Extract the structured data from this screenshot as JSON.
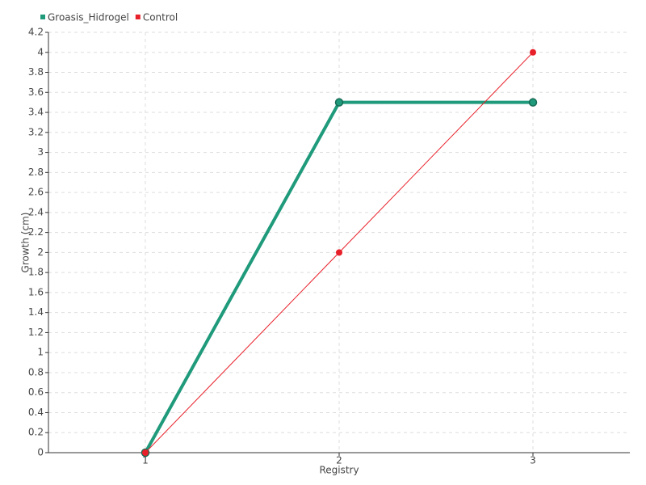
{
  "chart_data": {
    "type": "line",
    "x_label": "Registry",
    "y_label": "Growth (cm)",
    "x": [
      1,
      2,
      3
    ],
    "series": [
      {
        "name": "Groasis_Hidrogel",
        "color": "#1f9a7b",
        "values": [
          0,
          3.5,
          3.5
        ]
      },
      {
        "name": "Control",
        "color": "#e8202a",
        "values": [
          0,
          2,
          4
        ]
      }
    ],
    "xlim": [
      0.5,
      3.5
    ],
    "xticks": [
      1,
      2,
      3
    ],
    "ylim": [
      0,
      4.2
    ],
    "yticks": [
      0,
      0.2,
      0.4,
      0.6,
      0.8,
      1,
      1.2,
      1.4,
      1.6,
      1.8,
      2,
      2.2,
      2.4,
      2.6,
      2.8,
      3,
      3.2,
      3.4,
      3.6,
      3.8,
      4,
      4.2
    ],
    "grid": true,
    "legend": "top-left"
  }
}
